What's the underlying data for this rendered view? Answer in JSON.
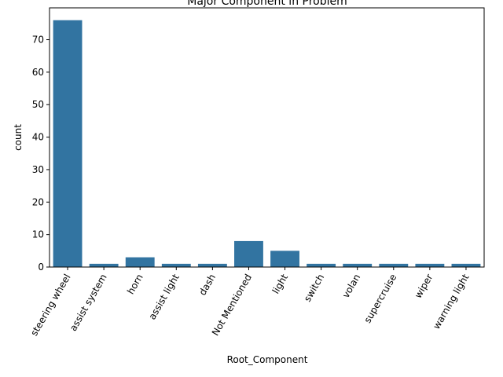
{
  "chart_data": {
    "type": "bar",
    "title": "Major Component in Problem",
    "xlabel": "Root_Component",
    "ylabel": "count",
    "categories": [
      "steering wheel",
      "assist system",
      "horn",
      "assist light",
      "dash",
      "Not Mentioned",
      "light",
      "switch",
      "volan",
      "supercruise",
      "wiper",
      "warning light"
    ],
    "values": [
      76,
      1,
      3,
      1,
      1,
      8,
      5,
      1,
      1,
      1,
      1,
      1
    ],
    "ylim": [
      0,
      79.8
    ],
    "yticks": [
      0,
      10,
      20,
      30,
      40,
      50,
      60,
      70
    ],
    "bar_color": "#3274a1",
    "grid": false,
    "legend": "none"
  }
}
